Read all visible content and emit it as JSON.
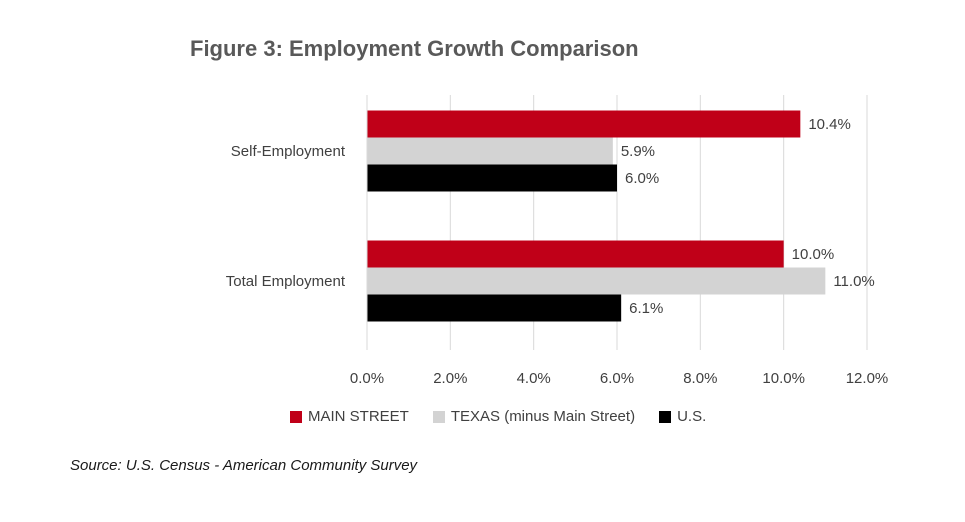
{
  "chart_data": {
    "type": "bar",
    "orientation": "horizontal",
    "title": "Figure 3: Employment Growth Comparison",
    "categories": [
      "Self-Employment",
      "Total Employment"
    ],
    "series": [
      {
        "name": "MAIN STREET",
        "values": [
          10.4,
          10.0
        ],
        "labels": [
          "10.4%",
          "10.0%"
        ],
        "color": "#c00018"
      },
      {
        "name": "TEXAS (minus Main Street)",
        "values": [
          5.9,
          11.0
        ],
        "labels": [
          "5.9%",
          "11.0%"
        ],
        "color": "#d3d3d3"
      },
      {
        "name": "U.S.",
        "values": [
          6.0,
          6.1
        ],
        "labels": [
          "6.0%",
          "6.1%"
        ],
        "color": "#000000"
      }
    ],
    "xlim": [
      0,
      12
    ],
    "xticks": [
      0,
      2,
      4,
      6,
      8,
      10,
      12
    ],
    "xtick_labels": [
      "0.0%",
      "2.0%",
      "4.0%",
      "6.0%",
      "8.0%",
      "10.0%",
      "12.0%"
    ],
    "grid": true,
    "legend_position": "bottom"
  },
  "source": "Source: U.S. Census - American Community Survey"
}
